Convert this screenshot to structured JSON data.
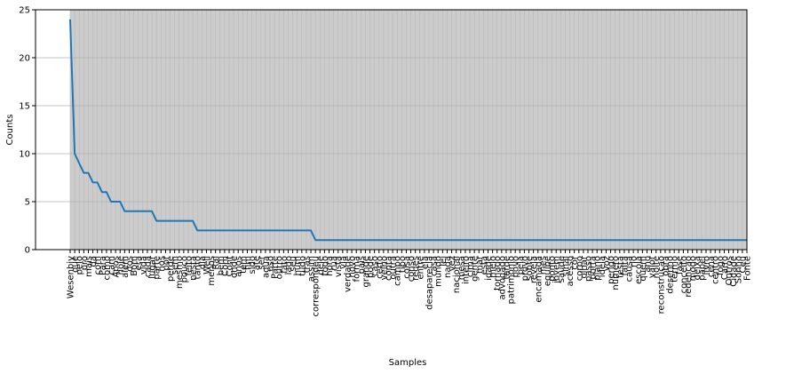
{
  "chart_data": {
    "type": "line",
    "title": "",
    "xlabel": "Samples",
    "ylabel": "Counts",
    "ylim": [
      0,
      25
    ],
    "yticks": [
      0,
      5,
      10,
      15,
      20,
      25
    ],
    "grid": true,
    "legend": "none",
    "colors": {
      "line": "#1f77b4",
      "grid": "#b0b0b0",
      "axes": "#000000"
    },
    "categories": [
      "Wesenbiy",
      "que",
      "pelo",
      "pro",
      "mais",
      "da",
      "com",
      "Para",
      "como",
      "cam",
      "Apos",
      "hoje",
      "alem",
      "dos",
      "Bom",
      "era",
      "vida",
      "cada",
      "lugar",
      "parte",
      "nos",
      "por",
      "perde",
      "sem",
      "mesmo",
      "pouco",
      "feito",
      "nesta",
      "tanto",
      "dia",
      "Well",
      "menos",
      "Ral",
      "bem",
      "Com",
      "Cont",
      "onde",
      "anos",
      "tem",
      "fim",
      "sido",
      "ate",
      "ser",
      "agua",
      "uso",
      "Parte",
      "outro",
      "fato",
      "lado",
      "seu",
      "hum",
      "tudo",
      "tras",
      "assim",
      "correspondeu",
      "dele",
      "todo",
      "hora",
      "rua",
      "vista",
      "via",
      "verdade",
      "novo",
      "forma",
      "pais",
      "grande",
      "pode",
      "caso",
      "certo",
      "velho",
      "conta",
      "outra",
      "campo",
      "tipo",
      "coisa",
      "conso",
      "redes",
      "entre",
      "ela",
      "desaparecia",
      "casa",
      "mundo",
      "lei",
      "nada",
      "vez",
      "nacional",
      "mesa",
      "inteiro",
      "cima",
      "gente",
      "mar",
      "esta",
      "idade",
      "meio",
      "tornado",
      "advogado",
      "tarde",
      "patrimonio",
      "povo",
      "pela",
      "provo",
      "sobre",
      "revela",
      "encamada",
      "mes",
      "equipe",
      "ponto",
      "jovem",
      "saude",
      "sinal",
      "acesso",
      "cor",
      "corpo",
      "olhar",
      "passo",
      "porta",
      "plano",
      "ideia",
      "voz",
      "perigo",
      "numero",
      "festa",
      "falta",
      "causa",
      "rio",
      "escola",
      "quem",
      "ano",
      "valor",
      "noite",
      "reconstrucao",
      "obra",
      "desenho",
      "termo",
      "fase",
      "conceito",
      "redencao",
      "modo",
      "deixa",
      "papel",
      "livro",
      "cena",
      "centro",
      "fogo",
      "Carro",
      "Outros",
      "Cidade",
      "Sonho",
      "Ceu",
      "Fonte"
    ],
    "series": [
      {
        "values": [
          24,
          10,
          9,
          8,
          8,
          7,
          7,
          6,
          6,
          5,
          5,
          5,
          4,
          4,
          4,
          4,
          4,
          4,
          4,
          3,
          3,
          3,
          3,
          3,
          3,
          3,
          3,
          3,
          2,
          2,
          2,
          2,
          2,
          2,
          2,
          2,
          2,
          2,
          2,
          2,
          2,
          2,
          2,
          2,
          2,
          2,
          2,
          2,
          2,
          2,
          2,
          2,
          2,
          2,
          1,
          1,
          1,
          1,
          1,
          1,
          1,
          1,
          1,
          1,
          1,
          1,
          1,
          1,
          1,
          1,
          1,
          1,
          1,
          1,
          1,
          1,
          1,
          1,
          1,
          1,
          1,
          1,
          1,
          1,
          1,
          1,
          1,
          1,
          1,
          1,
          1,
          1,
          1,
          1,
          1,
          1,
          1,
          1,
          1,
          1,
          1,
          1,
          1,
          1,
          1,
          1,
          1,
          1,
          1,
          1,
          1,
          1,
          1,
          1,
          1,
          1,
          1,
          1,
          1,
          1,
          1,
          1,
          1,
          1,
          1,
          1,
          1,
          1,
          1,
          1,
          1,
          1,
          1,
          1,
          1,
          1,
          1,
          1,
          1,
          1,
          1,
          1,
          1,
          1,
          1,
          1,
          1,
          1,
          1,
          1
        ]
      }
    ]
  }
}
